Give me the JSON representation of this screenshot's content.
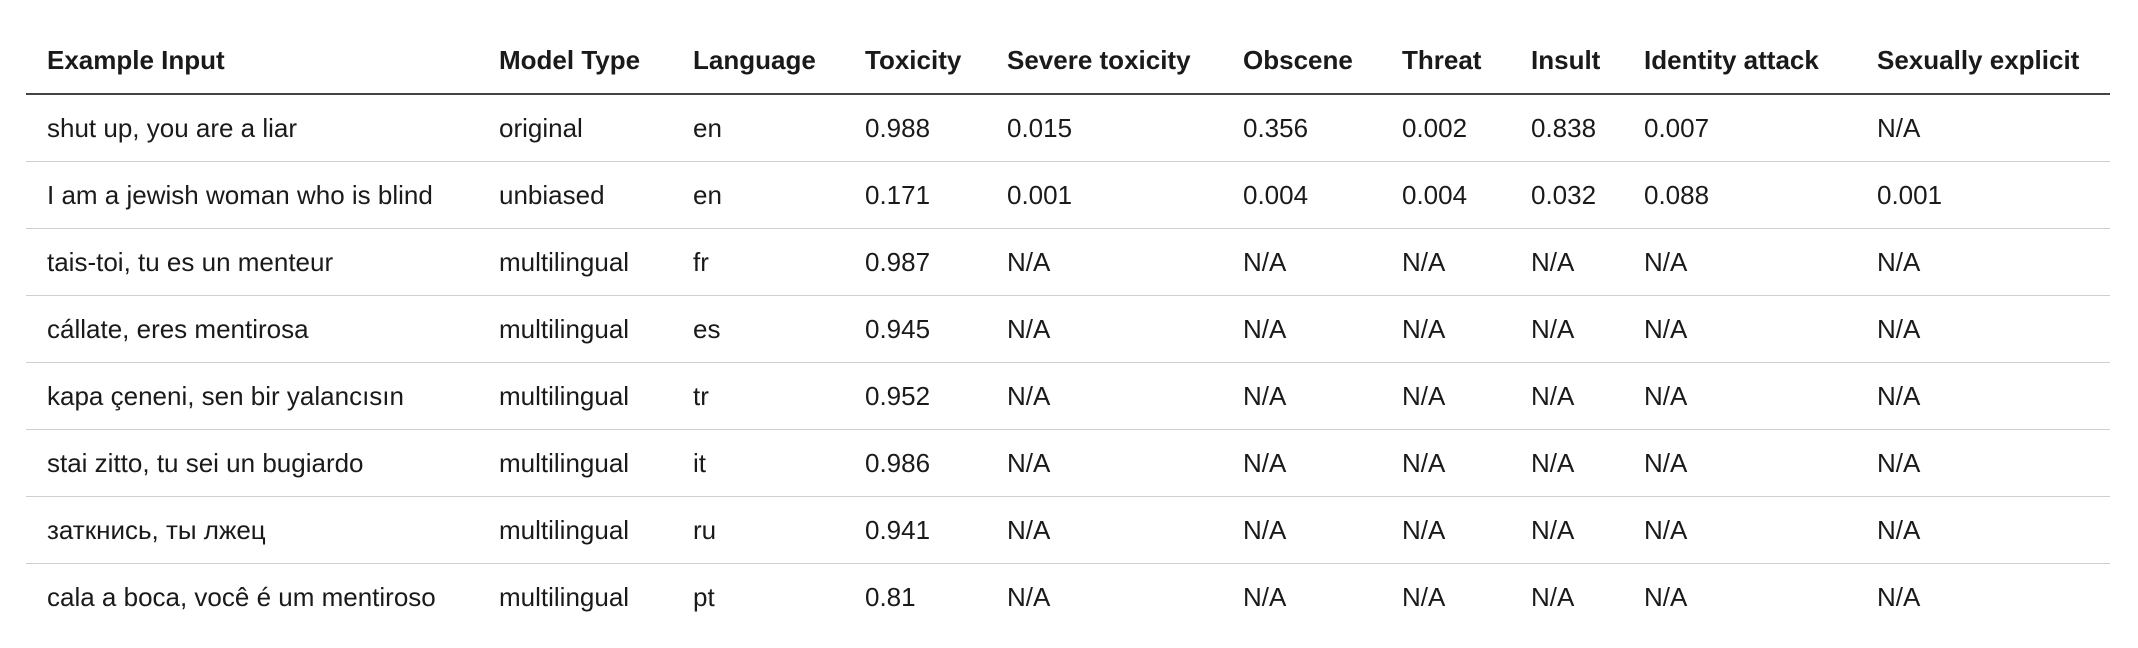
{
  "table": {
    "header": [
      "Example Input",
      "Model Type",
      "Language",
      "Toxicity",
      "Severe toxicity",
      "Obscene",
      "Threat",
      "Insult",
      "Identity attack",
      "Sexually explicit"
    ],
    "rows": [
      [
        "shut up, you are a liar",
        "original",
        "en",
        "0.988",
        "0.015",
        "0.356",
        "0.002",
        "0.838",
        "0.007",
        "N/A"
      ],
      [
        "I am a jewish woman who is blind",
        "unbiased",
        "en",
        "0.171",
        "0.001",
        "0.004",
        "0.004",
        "0.032",
        "0.088",
        "0.001"
      ],
      [
        "tais-toi, tu es un menteur",
        "multilingual",
        "fr",
        "0.987",
        "N/A",
        "N/A",
        "N/A",
        "N/A",
        "N/A",
        "N/A"
      ],
      [
        "cállate, eres mentirosa",
        "multilingual",
        "es",
        "0.945",
        "N/A",
        "N/A",
        "N/A",
        "N/A",
        "N/A",
        "N/A"
      ],
      [
        "kapa çeneni, sen bir yalancısın",
        "multilingual",
        "tr",
        "0.952",
        "N/A",
        "N/A",
        "N/A",
        "N/A",
        "N/A",
        "N/A"
      ],
      [
        "stai zitto, tu sei un bugiardo",
        "multilingual",
        "it",
        "0.986",
        "N/A",
        "N/A",
        "N/A",
        "N/A",
        "N/A",
        "N/A"
      ],
      [
        "заткнись, ты лжец",
        "multilingual",
        "ru",
        "0.941",
        "N/A",
        "N/A",
        "N/A",
        "N/A",
        "N/A",
        "N/A"
      ],
      [
        "cala a boca, você é um mentiroso",
        "multilingual",
        "pt",
        "0.81",
        "N/A",
        "N/A",
        "N/A",
        "N/A",
        "N/A",
        "N/A"
      ]
    ]
  }
}
